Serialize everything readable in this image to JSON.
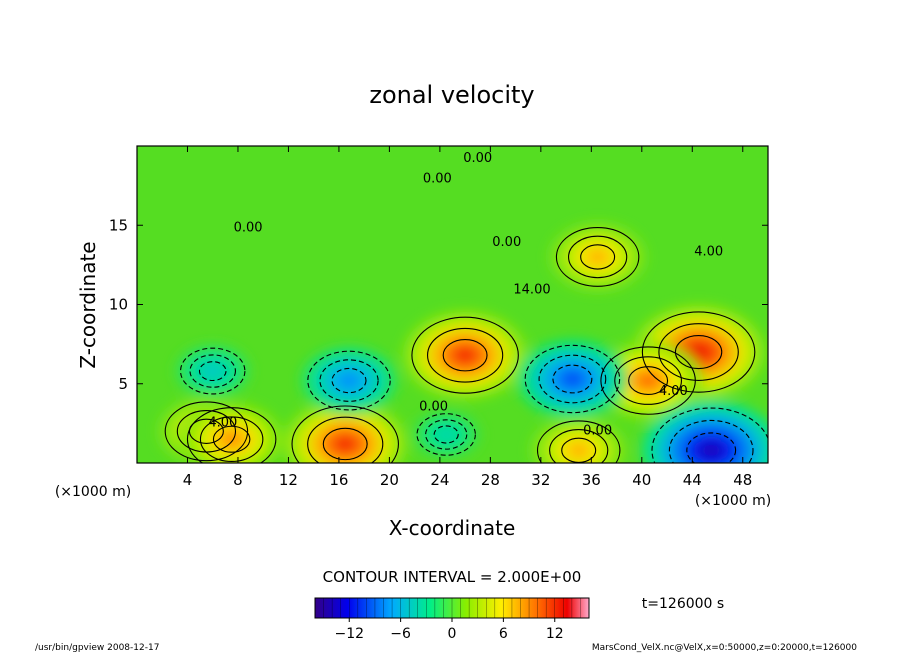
{
  "chart_data": {
    "type": "heatmap",
    "title": "zonal velocity",
    "xlabel": "X-coordinate",
    "ylabel": "Z-coordinate",
    "x_unit_note": "(×1000 m)",
    "y_unit_note": "(×1000 m)",
    "xlim": [
      0,
      50
    ],
    "ylim": [
      0,
      20
    ],
    "x_ticks": [
      4,
      8,
      12,
      16,
      20,
      24,
      28,
      32,
      36,
      40,
      44,
      48
    ],
    "y_ticks": [
      5,
      10,
      15
    ],
    "contour_interval_label": "CONTOUR INTERVAL = 2.000E+00",
    "time_label": "t=126000 s",
    "colorbar": {
      "range": [
        -16,
        16
      ],
      "ticks": [
        -12,
        -6,
        0,
        6,
        12
      ]
    },
    "contour_labels": [
      {
        "x": 27.0,
        "z": 19.0,
        "text": "0.00"
      },
      {
        "x": 23.8,
        "z": 17.7,
        "text": "0.00"
      },
      {
        "x": 8.8,
        "z": 14.6,
        "text": "0.00"
      },
      {
        "x": 29.3,
        "z": 13.7,
        "text": "0.00"
      },
      {
        "x": 31.3,
        "z": 10.7,
        "text": "14.00"
      },
      {
        "x": 45.3,
        "z": 13.1,
        "text": "4.00"
      },
      {
        "x": 23.5,
        "z": 3.3,
        "text": "0.00"
      },
      {
        "x": 6.8,
        "z": 2.3,
        "text": "4.00"
      },
      {
        "x": 36.5,
        "z": 1.8,
        "text": "0.00"
      },
      {
        "x": 42.5,
        "z": 4.3,
        "text": "4.00"
      }
    ],
    "features": [
      {
        "x": 26.0,
        "z": 6.8,
        "value": 12
      },
      {
        "x": 44.5,
        "z": 7.0,
        "value": 13
      },
      {
        "x": 40.5,
        "z": 5.2,
        "value": 10
      },
      {
        "x": 16.5,
        "z": 1.2,
        "value": 12
      },
      {
        "x": 35.0,
        "z": 0.8,
        "value": 8
      },
      {
        "x": 34.5,
        "z": 5.3,
        "value": -10
      },
      {
        "x": 16.8,
        "z": 5.2,
        "value": -8
      },
      {
        "x": 45.5,
        "z": 0.8,
        "value": -14
      },
      {
        "x": 24.5,
        "z": 1.8,
        "value": -4
      },
      {
        "x": 6.0,
        "z": 5.8,
        "value": -5
      },
      {
        "x": 36.5,
        "z": 13.0,
        "value": 8
      },
      {
        "x": 5.5,
        "z": 2.0,
        "value": 8
      },
      {
        "x": 7.5,
        "z": 1.5,
        "value": 9
      }
    ]
  },
  "footer": {
    "program": "/usr/bin/gpview   2008-12-17",
    "source": "MarsCond_VelX.nc@VelX,x=0:50000,z=0:20000,t=126000"
  },
  "colors": {
    "frame": "#000000",
    "background": "#ffffff",
    "field_zero": "#55dd22",
    "palette": [
      "#3300aa",
      "#0000ff",
      "#00aaff",
      "#00ff66",
      "#ffff00",
      "#ff8800",
      "#ff0000",
      "#ff99aa"
    ]
  }
}
